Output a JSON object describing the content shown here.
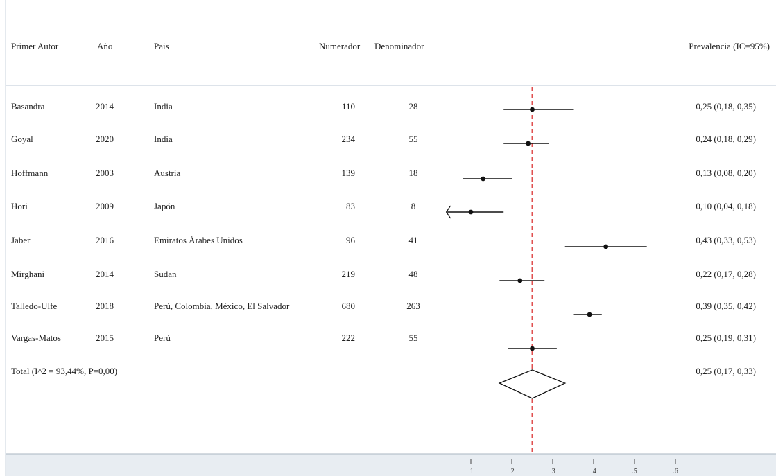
{
  "chart_data": {
    "type": "forest",
    "title": "",
    "columns": {
      "author": "Primer Autor",
      "year": "Año",
      "country": "Pais",
      "numerator": "Numerador",
      "denominator": "Denominador",
      "estimate": "Prevalencia (IC=95%)"
    },
    "rows": [
      {
        "author": "Basandra",
        "year": "2014",
        "country": "India",
        "numerator": "110",
        "denominator": "28",
        "estimate": 0.25,
        "lower": 0.18,
        "upper": 0.35,
        "label": "0,25 (0,18, 0,35)"
      },
      {
        "author": "Goyal",
        "year": "2020",
        "country": "India",
        "numerator": "234",
        "denominator": "55",
        "estimate": 0.24,
        "lower": 0.18,
        "upper": 0.29,
        "label": "0,24 (0,18, 0,29)"
      },
      {
        "author": "Hoffmann",
        "year": "2003",
        "country": "Austria",
        "numerator": "139",
        "denominator": "18",
        "estimate": 0.13,
        "lower": 0.08,
        "upper": 0.2,
        "label": "0,13 (0,08, 0,20)"
      },
      {
        "author": "Hori",
        "year": "2009",
        "country": "Japón",
        "numerator": "83",
        "denominator": "8",
        "estimate": 0.1,
        "lower": 0.04,
        "upper": 0.18,
        "label": "0,10 (0,04, 0,18)",
        "truncated_lower": true
      },
      {
        "author": "Jaber",
        "year": "2016",
        "country": "Emiratos Árabes Unidos",
        "numerator": "96",
        "denominator": "41",
        "estimate": 0.43,
        "lower": 0.33,
        "upper": 0.53,
        "label": "0,43 (0,33, 0,53)"
      },
      {
        "author": "Mirghani",
        "year": "2014",
        "country": "Sudan",
        "numerator": "219",
        "denominator": "48",
        "estimate": 0.22,
        "lower": 0.17,
        "upper": 0.28,
        "label": "0,22 (0,17, 0,28)"
      },
      {
        "author": "Talledo-Ulfe",
        "year": "2018",
        "country": "Perú, Colombia, México, El Salvador",
        "numerator": "680",
        "denominator": "263",
        "estimate": 0.39,
        "lower": 0.35,
        "upper": 0.42,
        "label": "0,39 (0,35, 0,42)"
      },
      {
        "author": "Vargas-Matos",
        "year": "2015",
        "country": "Perú",
        "numerator": "222",
        "denominator": "55",
        "estimate": 0.25,
        "lower": 0.19,
        "upper": 0.31,
        "label": "0,25 (0,19, 0,31)"
      }
    ],
    "total": {
      "label": "Total (I^2 = 93,44%, P=0,00)",
      "estimate": 0.25,
      "lower": 0.17,
      "upper": 0.33,
      "value_label": "0,25 (0,17, 0,33)"
    },
    "reference_line": 0.25,
    "xticks": [
      0.1,
      0.2,
      0.3,
      0.4,
      0.5,
      0.6
    ],
    "xtick_labels": [
      ".1",
      ".2",
      ".3",
      ".4",
      ".5",
      ".6"
    ],
    "xlabel": "",
    "colors": {
      "reference_line": "#e05050",
      "marks": "#111111",
      "axis_band": "#e8edf2",
      "frame": "#c9d3dd"
    }
  }
}
